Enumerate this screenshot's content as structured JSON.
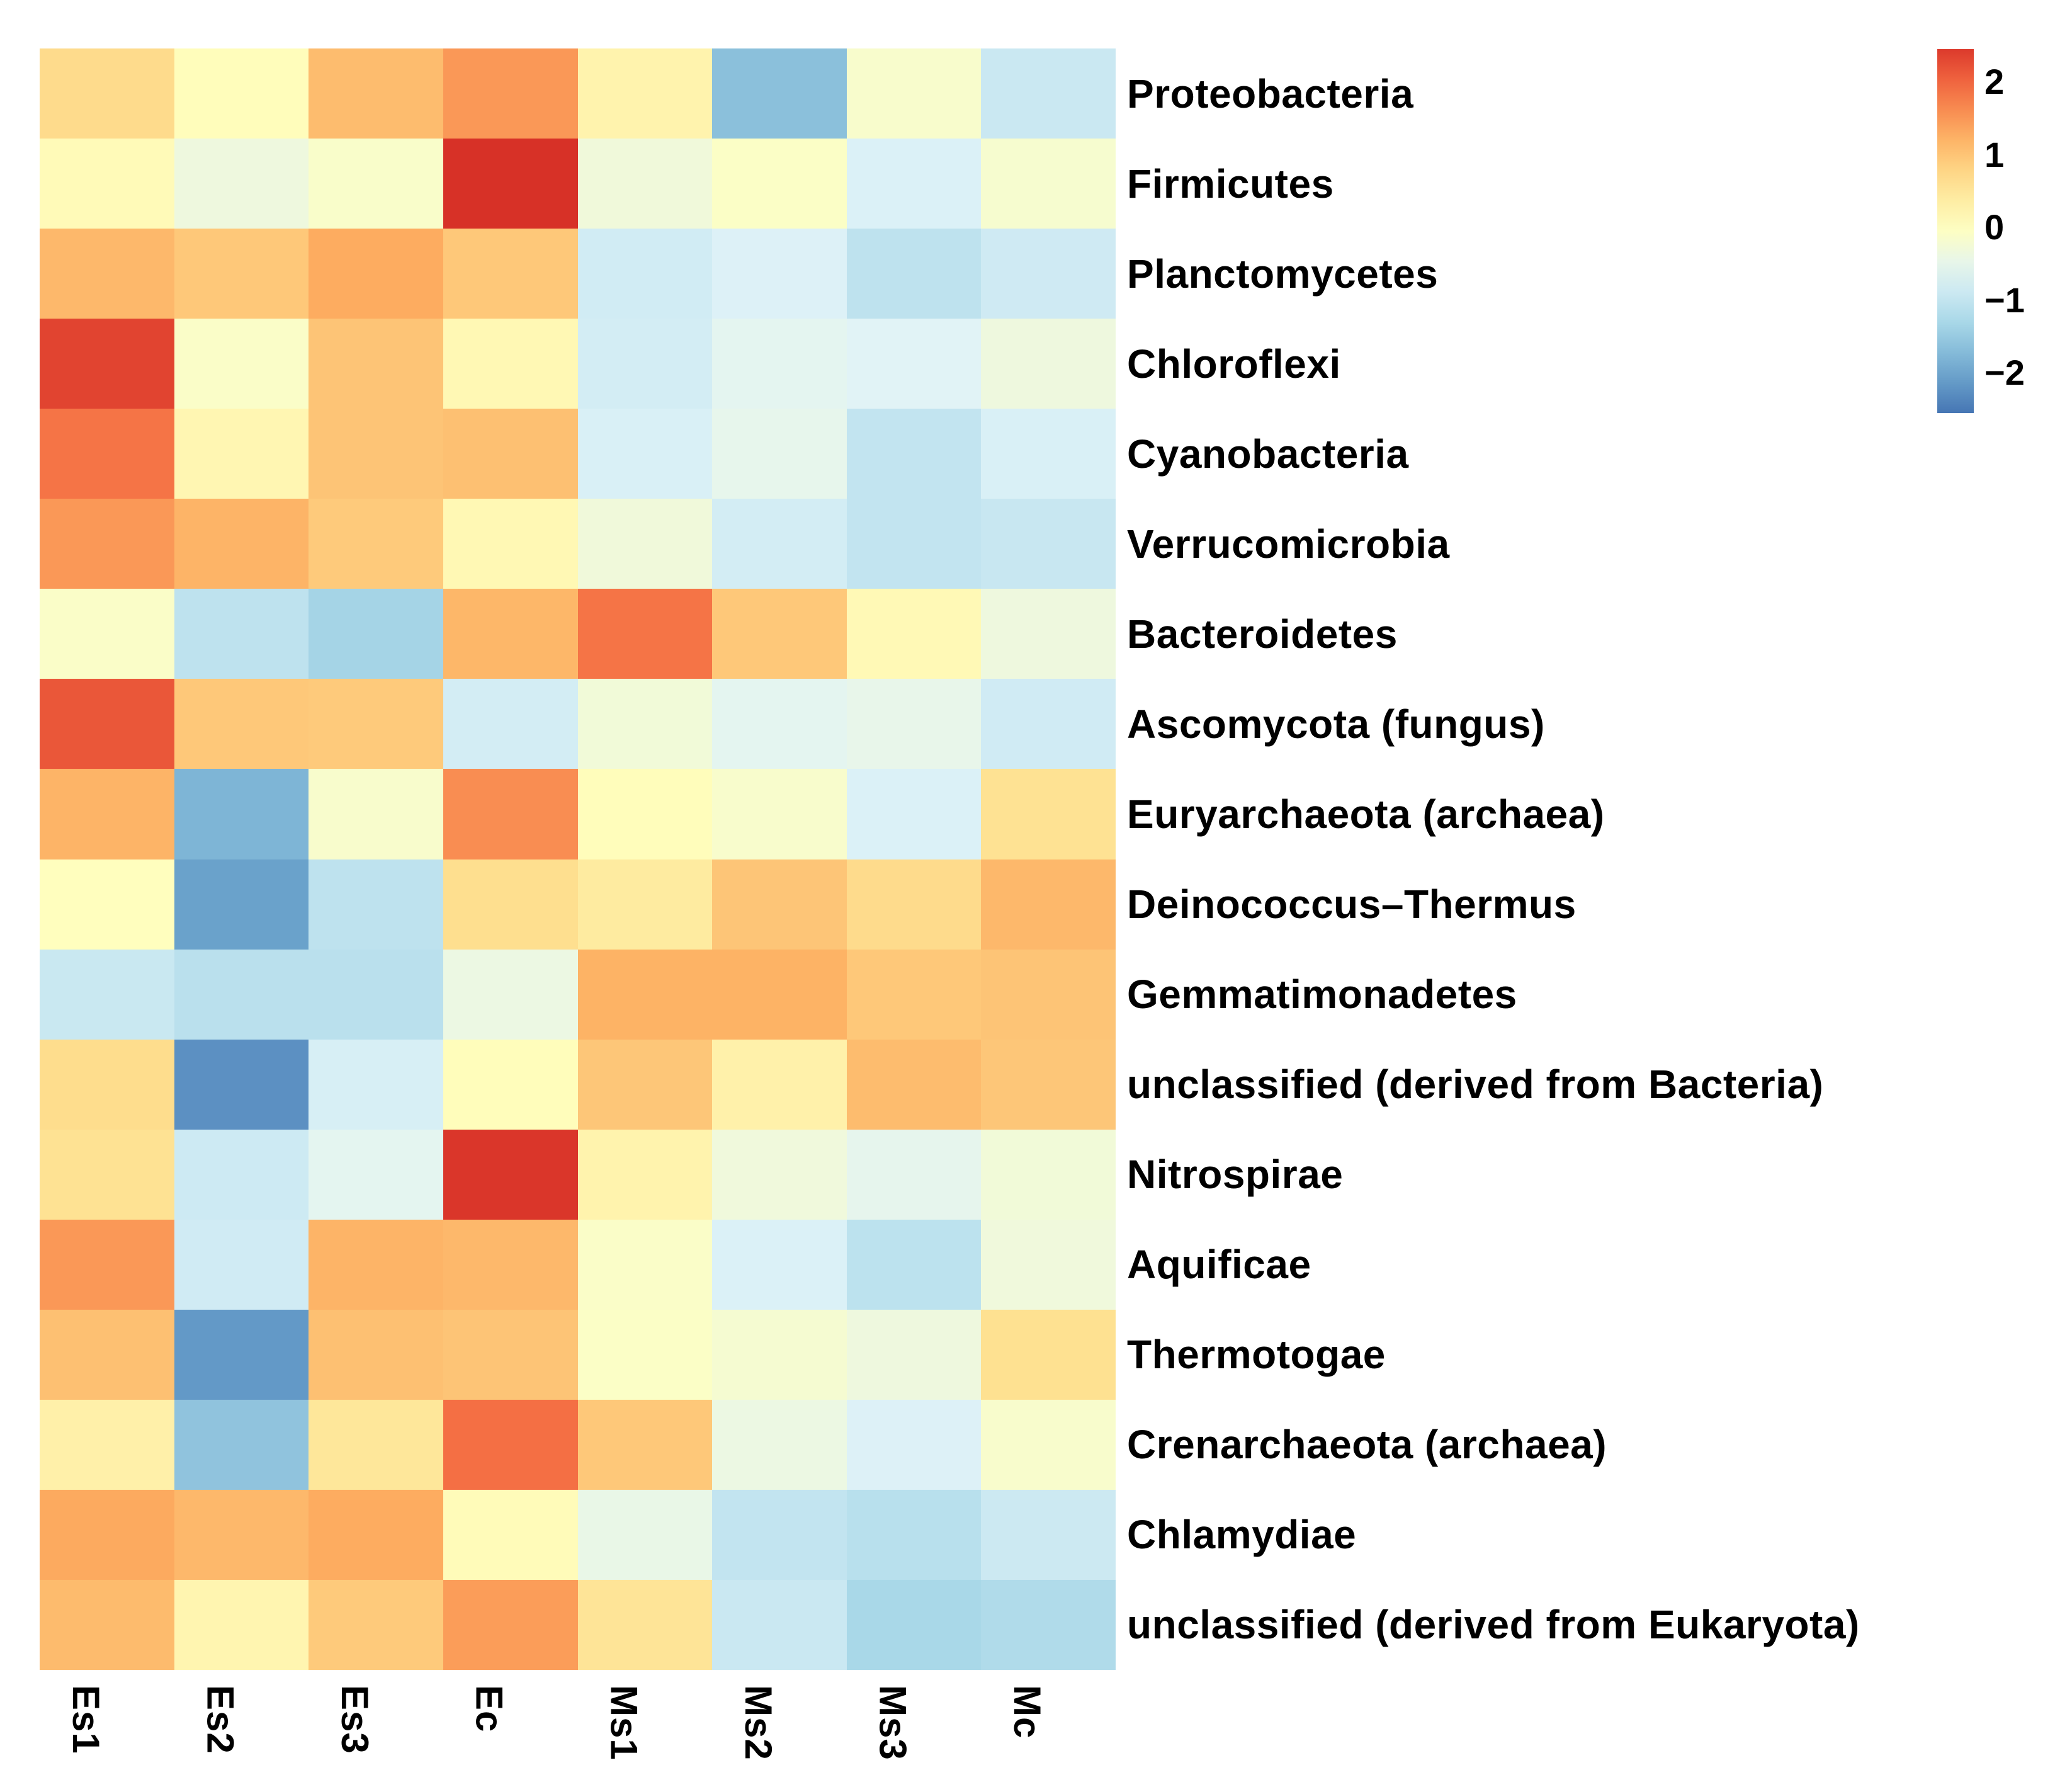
{
  "chart_data": {
    "type": "heatmap",
    "title": "",
    "xlabel": "",
    "ylabel": "",
    "grid": false,
    "legend_position": "top-right",
    "columns": [
      "Es1",
      "Es2",
      "Es3",
      "Ec",
      "Ms1",
      "Ms2",
      "Ms3",
      "Mc"
    ],
    "rows": [
      "Proteobacteria",
      "Firmicutes",
      "Planctomycetes",
      "Chloroflexi",
      "Cyanobacteria",
      "Verrucomicrobia",
      "Bacteroidetes",
      "Ascomycota (fungus)",
      "Euryarchaeota (archaea)",
      "Deinococcus–Thermus",
      "Gemmatimonadetes",
      "unclassified (derived from Bacteria)",
      "Nitrospirae",
      "Aquificae",
      "Thermotogae",
      "Crenarchaeota (archaea)",
      "Chlamydiae",
      "unclassified (derived from Eukaryota)"
    ],
    "values": [
      [
        0.7,
        0.05,
        1.1,
        1.5,
        0.25,
        -1.65,
        -0.15,
        -0.9
      ],
      [
        0.1,
        -0.35,
        -0.12,
        2.55,
        -0.3,
        -0.08,
        -0.7,
        -0.18
      ],
      [
        1.15,
        0.95,
        1.3,
        0.95,
        -0.82,
        -0.68,
        -1.05,
        -0.85
      ],
      [
        2.35,
        -0.1,
        1.0,
        0.15,
        -0.8,
        -0.55,
        -0.62,
        -0.35
      ],
      [
        1.85,
        0.18,
        1.0,
        1.05,
        -0.72,
        -0.5,
        -1.0,
        -0.72
      ],
      [
        1.5,
        1.2,
        0.92,
        0.15,
        -0.3,
        -0.8,
        -1.0,
        -0.93
      ],
      [
        -0.1,
        -1.05,
        -1.35,
        1.17,
        1.85,
        0.95,
        0.12,
        -0.35
      ],
      [
        2.15,
        0.95,
        0.92,
        -0.8,
        -0.28,
        -0.55,
        -0.48,
        -0.83
      ],
      [
        1.2,
        -1.8,
        -0.15,
        1.6,
        0.05,
        -0.15,
        -0.7,
        0.6
      ],
      [
        0.02,
        -2.05,
        -1.05,
        0.65,
        0.42,
        0.98,
        0.7,
        1.15
      ],
      [
        -0.92,
        -1.1,
        -1.1,
        -0.4,
        1.22,
        1.22,
        0.95,
        1.0
      ],
      [
        0.68,
        -2.25,
        -0.75,
        0.05,
        0.97,
        0.28,
        1.1,
        0.97
      ],
      [
        0.6,
        -0.87,
        -0.55,
        2.5,
        0.25,
        -0.32,
        -0.52,
        -0.28
      ],
      [
        1.5,
        -0.83,
        1.2,
        1.15,
        -0.1,
        -0.7,
        -1.07,
        -0.32
      ],
      [
        1.05,
        -2.15,
        1.05,
        1.0,
        -0.08,
        -0.2,
        -0.35,
        0.62
      ],
      [
        0.3,
        -1.6,
        0.5,
        1.9,
        0.95,
        -0.4,
        -0.68,
        -0.15
      ],
      [
        1.32,
        1.15,
        1.3,
        0.08,
        -0.45,
        -1.0,
        -1.12,
        -0.88
      ],
      [
        1.12,
        0.2,
        0.92,
        1.45,
        0.55,
        -0.9,
        -1.3,
        -1.22
      ]
    ],
    "colormap": {
      "name": "RdYlBu-reversed",
      "stops": [
        "#313695",
        "#4575b4",
        "#74add1",
        "#abd9e9",
        "#e0f3f8",
        "#ffffbf",
        "#fee090",
        "#fdae61",
        "#f46d43",
        "#d73027",
        "#a50026"
      ],
      "domain": [
        -3.2,
        3.2
      ]
    },
    "legend": {
      "bar_max": 2.45,
      "bar_min": -2.55,
      "tick_values": [
        2,
        1,
        0,
        -1,
        -2
      ],
      "tick_labels": [
        "2",
        "1",
        "0",
        "−1",
        "−2"
      ]
    }
  }
}
